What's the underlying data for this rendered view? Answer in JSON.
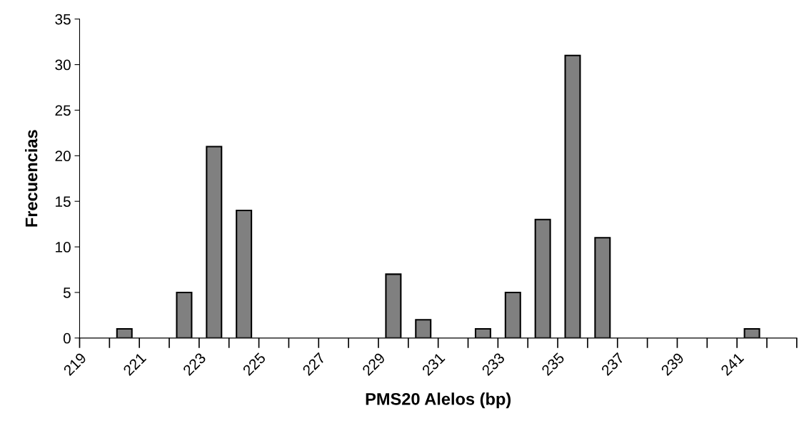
{
  "chart_data": {
    "type": "histogram",
    "xlabel": "PMS20 Alelos (bp)",
    "ylabel": "Frecuencias",
    "bins": [
      219,
      220,
      221,
      222,
      223,
      224,
      225,
      226,
      227,
      228,
      229,
      230,
      231,
      232,
      233,
      234,
      235,
      236,
      237,
      238,
      239,
      240,
      241,
      242,
      243
    ],
    "values": [
      0,
      1,
      0,
      5,
      21,
      14,
      0,
      0,
      0,
      0,
      7,
      2,
      0,
      1,
      5,
      13,
      31,
      11,
      0,
      0,
      0,
      0,
      1,
      0
    ],
    "color": "#808080",
    "xlim": [
      219,
      243
    ],
    "xticks": [
      219,
      {
        "value": 220,
        "label": null
      },
      221,
      {
        "value": 222,
        "label": null
      },
      223,
      {
        "value": 224,
        "label": null
      },
      225,
      {
        "value": 226,
        "label": null
      },
      227,
      {
        "value": 228,
        "label": null
      },
      229,
      {
        "value": 230,
        "label": null
      },
      231,
      {
        "value": 232,
        "label": null
      },
      233,
      {
        "value": 234,
        "label": null
      },
      235,
      {
        "value": 236,
        "label": null
      },
      237,
      {
        "value": 238,
        "label": null
      },
      239,
      {
        "value": 240,
        "label": null
      },
      241,
      {
        "value": 242,
        "label": null
      },
      {
        "value": 243,
        "label": null
      }
    ],
    "ylim": [
      0,
      35
    ],
    "yticks": [
      0,
      5,
      10,
      15,
      20,
      25,
      30,
      35
    ],
    "grid": false,
    "legend": false
  }
}
